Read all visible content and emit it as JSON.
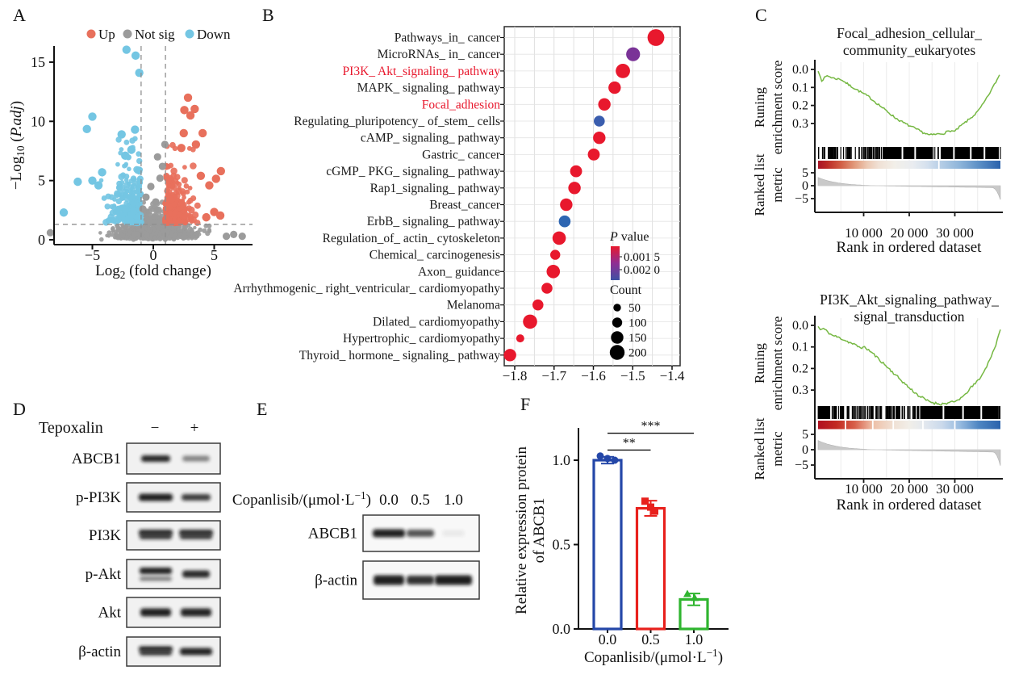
{
  "panels": {
    "A": "A",
    "B": "B",
    "C": "C",
    "D": "D",
    "E": "E",
    "F": "F"
  },
  "chart_data": [
    {
      "id": "volcano",
      "type": "scatter",
      "panel": "A",
      "xlabel_parts": [
        {
          "t": "Log"
        },
        {
          "t": "2",
          "sub": true
        },
        {
          "t": " (fold change)"
        }
      ],
      "ylabel_parts": [
        {
          "t": "−Log"
        },
        {
          "t": "10",
          "sub": true
        },
        {
          "t": " ("
        },
        {
          "t": "P.adj",
          "it": true
        },
        {
          "t": ")"
        }
      ],
      "xlim": [
        -8.5,
        8
      ],
      "ylim": [
        0,
        16.5
      ],
      "xticks": [
        -5,
        0,
        5
      ],
      "yticks": [
        0,
        5,
        10,
        15
      ],
      "legend": [
        {
          "label": "Up",
          "color": "#e8705c"
        },
        {
          "label": "Not sig",
          "color": "#9b9b9b"
        },
        {
          "label": "Down",
          "color": "#74c6e3"
        }
      ],
      "thresholds": {
        "log2fc": [
          -1,
          1
        ],
        "neg_log10_padj": 1.3
      },
      "point_counts": {
        "up": 300,
        "not_sig": 850,
        "down": 280
      },
      "notable_points": {
        "down": [
          [
            -2.2,
            16.05
          ],
          [
            -1.45,
            15.55
          ],
          [
            -1.15,
            14.1
          ],
          [
            -5.0,
            10.4
          ],
          [
            -5.45,
            9.35
          ],
          [
            -1.5,
            9.3
          ],
          [
            -2.6,
            8.9
          ],
          [
            -1.8,
            7.6
          ],
          [
            -2.3,
            7.1
          ],
          [
            -6.2,
            4.9
          ],
          [
            -4.2,
            5.7
          ],
          [
            -7.35,
            2.3
          ],
          [
            -5.0,
            5.0
          ],
          [
            -4.5,
            4.6
          ]
        ],
        "up": [
          [
            2.85,
            12.0
          ],
          [
            3.4,
            11.05
          ],
          [
            2.55,
            10.95
          ],
          [
            3.05,
            10.5
          ],
          [
            4.05,
            9.0
          ],
          [
            2.5,
            9.0
          ],
          [
            3.5,
            8.05
          ],
          [
            2.3,
            7.75
          ],
          [
            5.55,
            5.8
          ],
          [
            5.15,
            5.15
          ],
          [
            4.6,
            4.6
          ],
          [
            5.0,
            2.35
          ],
          [
            5.5,
            2.05
          ],
          [
            4.35,
            1.9
          ],
          [
            3.9,
            5.4
          ]
        ],
        "not_sig": [
          [
            0.95,
            8.05
          ],
          [
            0.35,
            7.0
          ],
          [
            0.55,
            5.2
          ],
          [
            -0.2,
            4.5
          ],
          [
            0.75,
            6.2
          ],
          [
            -0.6,
            3.6
          ],
          [
            0.2,
            3.2
          ],
          [
            -0.85,
            2.6
          ],
          [
            -8.45,
            0.6
          ],
          [
            6.0,
            0.3
          ],
          [
            6.6,
            0.45
          ],
          [
            7.3,
            0.3
          ]
        ]
      },
      "seed": 42
    },
    {
      "id": "kegg_dotplot",
      "type": "scatter",
      "panel": "B",
      "categories": [
        "Pathways_in_ cancer",
        "MicroRNAs_ in_ cancer",
        "PI3K_ Akt_signaling_ pathway",
        "MAPK_ signaling_ pathway",
        "Focal_adhesion",
        "Regulating_pluripotency_ of_stem_ cells",
        "cAMP_ signaling_ pathway",
        "Gastric_ cancer",
        "cGMP_ PKG_ signaling_ pathway",
        "Rap1_signaling_ pathway",
        "Breast_cancer",
        "ErbB_ signaling_ pathway",
        "Regulation_of_ actin_ cytoskeleton",
        "Chemical_ carcinogenesis",
        "Axon_ guidance",
        "Arrhythmogenic_ right_ventricular_ cardiomyopathy",
        "Melanoma",
        "Dilated_ cardiomyopathy",
        "Hypertrophic_ cardiomyopathy",
        "Thyroid_ hormone_ signaling_ pathway"
      ],
      "values": [
        -1.441,
        -1.499,
        -1.525,
        -1.546,
        -1.572,
        -1.585,
        -1.585,
        -1.599,
        -1.644,
        -1.648,
        -1.669,
        -1.673,
        -1.687,
        -1.697,
        -1.702,
        -1.718,
        -1.741,
        -1.761,
        -1.786,
        -1.812
      ],
      "counts": [
        240,
        180,
        190,
        150,
        150,
        120,
        150,
        140,
        140,
        150,
        150,
        135,
        170,
        100,
        170,
        120,
        120,
        185,
        60,
        150
      ],
      "dot_colors": [
        "#e8182d",
        "#7a3397",
        "#e8182d",
        "#e8182d",
        "#e8182d",
        "#3a5dae",
        "#e8182d",
        "#e8182d",
        "#e8182d",
        "#e8182d",
        "#e8182d",
        "#2e66b2",
        "#e8182d",
        "#e8182d",
        "#e8182d",
        "#e8182d",
        "#e8182d",
        "#e8182d",
        "#e8182d",
        "#e8182d"
      ],
      "red_label_indices": [
        2,
        4
      ],
      "red_label_color": "#e8182d",
      "xticks": [
        -1.8,
        -1.7,
        -1.6,
        -1.5,
        -1.4
      ],
      "legend": {
        "p_title_parts": [
          {
            "t": "P",
            "it": true
          },
          {
            "t": " value"
          }
        ],
        "p_tick_labels": [
          "0.001 5",
          "0.002 0"
        ],
        "p_gradient": [
          "#e8182d",
          "#8f2d93",
          "#3f51a3"
        ],
        "count_title": "Count",
        "count_items": [
          50,
          100,
          150,
          200
        ]
      }
    },
    {
      "id": "gsea_focal_adhesion",
      "type": "line",
      "panel": "C",
      "title_lines": [
        "Focal_adhesion_cellular_",
        "community_eukaryotes"
      ],
      "ylabel_lines": [
        "Runing",
        "enrichment score"
      ],
      "ylabel2_lines": [
        "Ranked list",
        "metric"
      ],
      "xlabel": "Rank in ordered dataset",
      "es_ticks": [
        "0.0",
        "0.1",
        "0.2",
        "0.3"
      ],
      "metric_ticks": [
        5,
        0,
        -5
      ],
      "xticks": [
        10000,
        20000,
        30000
      ],
      "xtick_labels": [
        "10 000",
        "20 000",
        "30 000"
      ],
      "x_max": 40000,
      "curve_color": "#76b843",
      "es_curve": [
        [
          0,
          -0.01
        ],
        [
          800,
          -0.06
        ],
        [
          2000,
          -0.035
        ],
        [
          3500,
          -0.05
        ],
        [
          5000,
          -0.055
        ],
        [
          7000,
          -0.09
        ],
        [
          9000,
          -0.12
        ],
        [
          11000,
          -0.15
        ],
        [
          13000,
          -0.19
        ],
        [
          15000,
          -0.23
        ],
        [
          17000,
          -0.27
        ],
        [
          19000,
          -0.3
        ],
        [
          21000,
          -0.325
        ],
        [
          23000,
          -0.35
        ],
        [
          24500,
          -0.365
        ],
        [
          26000,
          -0.36
        ],
        [
          27500,
          -0.355
        ],
        [
          29000,
          -0.34
        ],
        [
          30000,
          -0.345
        ],
        [
          31000,
          -0.32
        ],
        [
          32000,
          -0.3
        ],
        [
          33500,
          -0.27
        ],
        [
          35000,
          -0.235
        ],
        [
          36000,
          -0.2
        ],
        [
          37000,
          -0.16
        ],
        [
          38000,
          -0.115
        ],
        [
          39000,
          -0.07
        ],
        [
          39800,
          -0.03
        ]
      ],
      "barcode": {
        "n": 240,
        "solid": [
          [
            14500,
            24800
          ],
          [
            27000,
            39300
          ]
        ],
        "gaps": [
          18500,
          21300,
          25900,
          29800,
          33500,
          36500
        ]
      },
      "band_stops": [
        [
          0,
          "#a81325"
        ],
        [
          0.05,
          "#bb2a26"
        ],
        [
          0.12,
          "#d05a42"
        ],
        [
          0.2,
          "#e29a7b"
        ],
        [
          0.27,
          "#ecc9b4"
        ],
        [
          0.33,
          "#f0e0d4"
        ],
        [
          0.42,
          "#f2efe9"
        ],
        [
          0.52,
          "#e9ecf0"
        ],
        [
          0.6,
          "#d4e0ee"
        ],
        [
          0.68,
          "#b3cce5"
        ],
        [
          0.78,
          "#8db4d9"
        ],
        [
          0.88,
          "#5d90c6"
        ],
        [
          1,
          "#2a62ac"
        ]
      ],
      "band_seps": [
        26500
      ],
      "metric": {
        "a": 3.2,
        "tau": 4200,
        "neg": 0.8,
        "ps": 38200,
        "pd": 4.6
      },
      "seed": 7
    },
    {
      "id": "gsea_pi3k_akt",
      "type": "line",
      "panel": "C",
      "title_lines": [
        "PI3K_Akt_signaling_pathway_",
        "signal_transduction"
      ],
      "ylabel_lines": [
        "Runing",
        "enrichment score"
      ],
      "ylabel2_lines": [
        "Ranked list",
        "metric"
      ],
      "xlabel": "Rank in ordered dataset",
      "es_ticks": [
        "0.0",
        "0.1",
        "0.2",
        "0.3"
      ],
      "metric_ticks": [
        5,
        0,
        -5
      ],
      "xticks": [
        10000,
        20000,
        30000
      ],
      "xtick_labels": [
        "10 000",
        "20 000",
        "30 000"
      ],
      "x_max": 40000,
      "curve_color": "#76b843",
      "es_curve": [
        [
          0,
          -0.005
        ],
        [
          500,
          -0.02
        ],
        [
          1200,
          -0.015
        ],
        [
          3000,
          -0.045
        ],
        [
          5000,
          -0.06
        ],
        [
          7000,
          -0.08
        ],
        [
          9000,
          -0.1
        ],
        [
          10500,
          -0.105
        ],
        [
          12000,
          -0.13
        ],
        [
          14000,
          -0.17
        ],
        [
          16000,
          -0.21
        ],
        [
          18000,
          -0.25
        ],
        [
          20000,
          -0.29
        ],
        [
          22000,
          -0.325
        ],
        [
          24000,
          -0.35
        ],
        [
          25500,
          -0.36
        ],
        [
          27000,
          -0.365
        ],
        [
          28500,
          -0.36
        ],
        [
          30000,
          -0.355
        ],
        [
          31000,
          -0.34
        ],
        [
          32000,
          -0.33
        ],
        [
          33000,
          -0.3
        ],
        [
          34500,
          -0.27
        ],
        [
          36000,
          -0.23
        ],
        [
          37000,
          -0.19
        ],
        [
          38000,
          -0.14
        ],
        [
          39000,
          -0.09
        ],
        [
          39600,
          -0.05
        ],
        [
          40000,
          -0.02
        ]
      ],
      "barcode": {
        "n": 210,
        "solid": [
          [
            0,
            2300
          ],
          [
            22800,
            39500
          ]
        ],
        "gaps": [
          27500,
          31800,
          35800
        ]
      },
      "band_stops": [
        [
          0,
          "#b01020"
        ],
        [
          0.1,
          "#c22a22"
        ],
        [
          0.2,
          "#d8604a"
        ],
        [
          0.3,
          "#eec0a8"
        ],
        [
          0.42,
          "#f0e2d6"
        ],
        [
          0.5,
          "#f1eee8"
        ],
        [
          0.58,
          "#e4e9ef"
        ],
        [
          0.68,
          "#cad9eb"
        ],
        [
          0.78,
          "#95badf"
        ],
        [
          0.88,
          "#4f86c2"
        ],
        [
          1,
          "#2a62ac"
        ]
      ],
      "band_seps": [
        6000,
        12000,
        16500,
        23000,
        30000
      ],
      "metric": {
        "a": 3.0,
        "tau": 4200,
        "neg": 0.8,
        "ps": 38400,
        "pd": 4.4
      },
      "seed": 11
    },
    {
      "id": "abcb1_expression",
      "type": "bar",
      "panel": "F",
      "categories": [
        "0.0",
        "0.5",
        "1.0"
      ],
      "values": [
        1.0,
        0.715,
        0.175
      ],
      "errors": [
        0.02,
        0.045,
        0.035
      ],
      "bar_colors": [
        "#2447a8",
        "#e8211d",
        "#2fb52f"
      ],
      "points": [
        [
          1.025,
          1.01,
          1.0
        ],
        [
          0.757,
          0.722,
          0.698
        ],
        [
          0.208,
          0.185
        ]
      ],
      "point_markers": [
        "circle",
        "square",
        "triangle"
      ],
      "yticks": [
        "0.0",
        "0.5",
        "1.0"
      ],
      "ylim": [
        0,
        1.25
      ],
      "ylabel_lines": [
        "Relative expression protein",
        "of ABCB1"
      ],
      "xlabel_parts": [
        {
          "t": "Copanlisib/(μmol·L"
        },
        {
          "t": "−1",
          "sup": true
        },
        {
          "t": ")"
        }
      ],
      "significance": [
        {
          "from": 0,
          "to": 1,
          "label": "**",
          "y": 1.06
        },
        {
          "from": 0,
          "to": 2,
          "label": "***",
          "y": 1.16
        }
      ]
    }
  ],
  "blots": {
    "D": {
      "treatment_label": "Tepoxalin",
      "col_labels": [
        "−",
        "+"
      ],
      "rows": [
        {
          "label": "ABCB1",
          "bands": [
            [
              0.92,
              36,
              8,
              0
            ],
            [
              0.5,
              34,
              7,
              0
            ]
          ]
        },
        {
          "label": "p-PI3K",
          "bands": [
            [
              0.95,
              42,
              9,
              0
            ],
            [
              0.82,
              36,
              8,
              0
            ]
          ]
        },
        {
          "label": "PI3K",
          "bands": [
            [
              0.9,
              42,
              10,
              1
            ],
            [
              0.88,
              42,
              10,
              1
            ]
          ]
        },
        {
          "label": "p-Akt",
          "bands": [
            [
              0.95,
              40,
              10,
              2
            ],
            [
              0.9,
              34,
              9,
              0
            ]
          ]
        },
        {
          "label": "Akt",
          "bands": [
            [
              0.95,
              38,
              10,
              0
            ],
            [
              0.93,
              38,
              10,
              0
            ]
          ]
        },
        {
          "label": "β-actin",
          "bands": [
            [
              0.95,
              42,
              9,
              1
            ],
            [
              0.93,
              40,
              9,
              0
            ]
          ]
        }
      ]
    },
    "E": {
      "treatment_label_parts": [
        {
          "t": "Copanlisib/(μmol·L"
        },
        {
          "t": "−1",
          "sup": true
        },
        {
          "t": ")"
        }
      ],
      "col_labels": [
        "0.0",
        "0.5",
        "1.0"
      ],
      "rows": [
        {
          "label": "ABCB1",
          "bands": [
            [
              0.95,
              40,
              10,
              0
            ],
            [
              0.72,
              34,
              9,
              0
            ],
            [
              0.06,
              28,
              8,
              0
            ]
          ]
        },
        {
          "label": "β-actin",
          "bands": [
            [
              0.95,
              38,
              12,
              0
            ],
            [
              0.88,
              34,
              11,
              0
            ],
            [
              0.96,
              46,
              12,
              0
            ]
          ]
        }
      ]
    }
  }
}
